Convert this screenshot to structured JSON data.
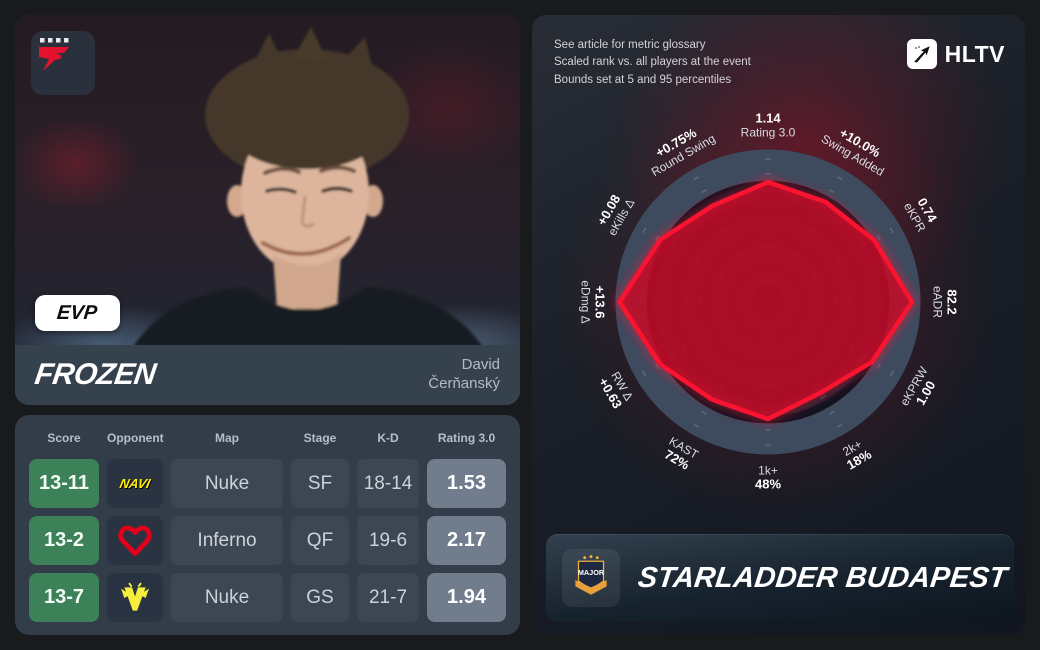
{
  "player_card": {
    "team": "FaZe",
    "badge_label": "EVP",
    "nickname": "FROZEN",
    "real_name": [
      "David",
      "Čerňanský"
    ]
  },
  "matches_table": {
    "columns": [
      "Score",
      "Opponent",
      "Map",
      "Stage",
      "K-D",
      "Rating 3.0"
    ],
    "rows": [
      {
        "score": "13-11",
        "opponent": "NAVI",
        "map": "Nuke",
        "stage": "SF",
        "kd": "18-14",
        "rating": "1.53"
      },
      {
        "score": "13-2",
        "opponent": "MOUZ",
        "map": "Inferno",
        "stage": "QF",
        "kd": "19-6",
        "rating": "2.17"
      },
      {
        "score": "13-7",
        "opponent": "Vitality",
        "map": "Nuke",
        "stage": "GS",
        "kd": "21-7",
        "rating": "1.94"
      }
    ]
  },
  "radar_panel": {
    "notes": [
      "See article for metric glossary",
      "Scaled rank vs. all players at the event",
      "Bounds set at 5 and 95 percentiles"
    ],
    "brand": "HLTV",
    "event_name": "STARLADDER BUDAPEST",
    "event_logo_text": "MAJOR"
  },
  "chart_data": {
    "type": "radar",
    "order": "clockwise from top",
    "axes": [
      {
        "metric": "Rating 3.0",
        "value": "1.14",
        "frac": 0.8
      },
      {
        "metric": "Swing Added",
        "value": "+10.0%",
        "frac": 0.77
      },
      {
        "metric": "eKPR",
        "value": "0.74",
        "frac": 0.82
      },
      {
        "metric": "eADR",
        "value": "82.2",
        "frac": 0.96
      },
      {
        "metric": "eKPRW",
        "value": "1.00",
        "frac": 0.8
      },
      {
        "metric": "2k+",
        "value": "18%",
        "frac": 0.7
      },
      {
        "metric": "1k+",
        "value": "48%",
        "frac": 0.78
      },
      {
        "metric": "KAST",
        "value": "72%",
        "frac": 0.75
      },
      {
        "metric": "RW Δ",
        "value": "+0.63",
        "frac": 0.83
      },
      {
        "metric": "eDmg Δ",
        "value": "+13.6",
        "frac": 0.99
      },
      {
        "metric": "eKills Δ",
        "value": "+0.08",
        "frac": 0.83
      },
      {
        "metric": "Round Swing",
        "value": "+0.75%",
        "frac": 0.74
      }
    ],
    "scale": "axes normalized 0-1 (scaled rank vs. all players at event, bounds at 5/95 percentiles)",
    "rings": 8,
    "legend_position": "none",
    "fill_color": "#c40e2e",
    "stroke_color": "#fa1430"
  },
  "colors": {
    "score_badge_green": "#3c8158",
    "rating_badge_gray": "#717c8d",
    "faze_red": "#e5122e",
    "navi_yellow": "#ffef00",
    "mouz_red": "#e3001b",
    "vitality_yellow": "#f6ee3a",
    "major_gold": "#e8a13a",
    "radar_band": "#3e4b5f"
  }
}
